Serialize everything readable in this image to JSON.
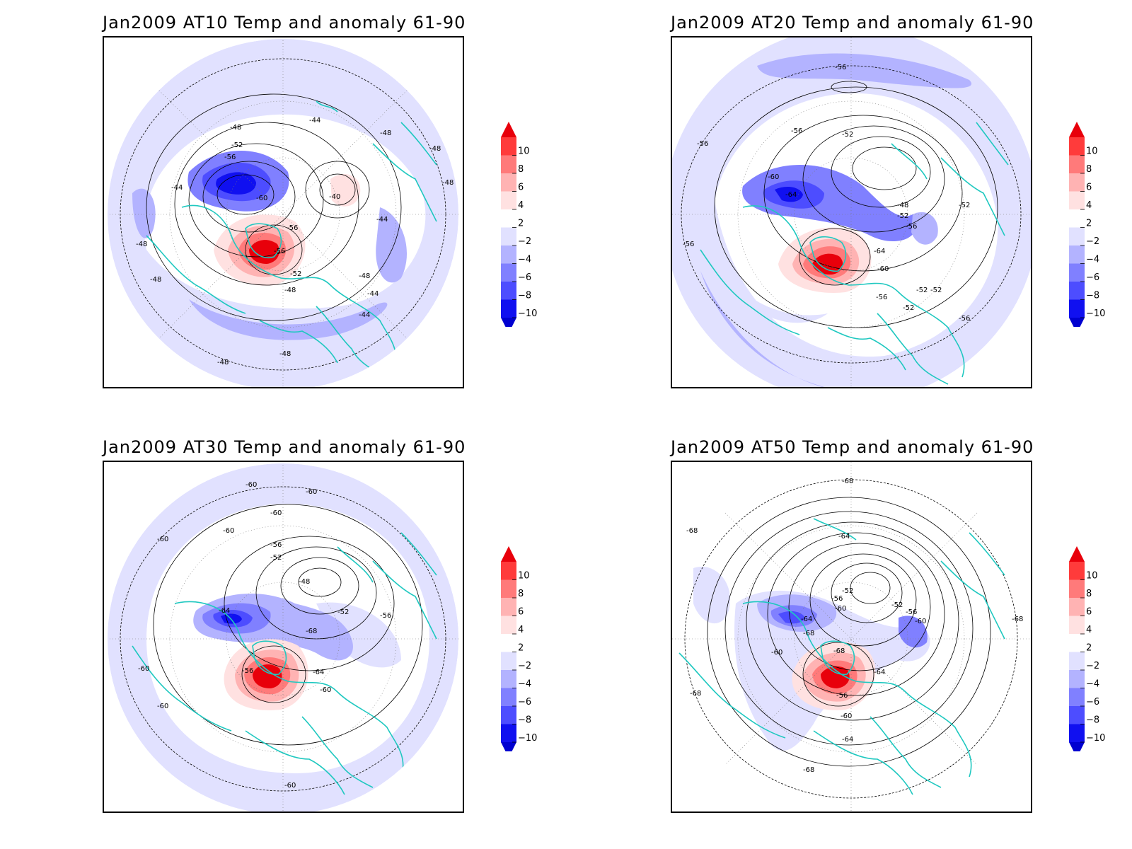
{
  "panels": [
    {
      "title": "Jan2009 AT10 Temp and anomaly 61-90",
      "contour_labels": [
        "-44",
        "-48",
        "-52",
        "-56",
        "-60",
        "-56",
        "-56",
        "-52",
        "-48",
        "-44",
        "-48",
        "-48",
        "-40",
        "-44",
        "-48",
        "-48",
        "-48",
        "-48",
        "-44",
        "-44",
        "-48",
        "-48"
      ]
    },
    {
      "title": "Jan2009 AT20 Temp and anomaly 61-90",
      "contour_labels": [
        "-56",
        "-56",
        "-56",
        "-52",
        "-60",
        "-64",
        "-48",
        "-52",
        "-56",
        "-52",
        "-56",
        "-64",
        "-60",
        "-56",
        "-52",
        "-52",
        "-52",
        "-56"
      ]
    },
    {
      "title": "Jan2009 AT30 Temp and anomaly 61-90",
      "contour_labels": [
        "-60",
        "-60",
        "-60",
        "-60",
        "-60",
        "-56",
        "-52",
        "-48",
        "-52",
        "-56",
        "-64",
        "-68",
        "-56",
        "-64",
        "-60",
        "-60",
        "-60",
        "-60"
      ]
    },
    {
      "title": "Jan2009 AT50 Temp and anomaly 61-90",
      "contour_labels": [
        "-68",
        "-68",
        "-64",
        "-52",
        "-56",
        "-52",
        "-56",
        "-60",
        "-60",
        "-64",
        "-68",
        "-60",
        "-68",
        "-64",
        "-56",
        "-60",
        "-64",
        "-68",
        "-68",
        "-68"
      ]
    }
  ],
  "colorbar": {
    "labels": [
      "10",
      "8",
      "6",
      "4",
      "2",
      "−2",
      "−4",
      "−6",
      "−8",
      "−10"
    ],
    "colors": [
      "#e8000b",
      "#ff3b3b",
      "#ff7a7a",
      "#ffb3b3",
      "#ffe1e1",
      "#ffffff",
      "#e1e1ff",
      "#b3b3ff",
      "#8080ff",
      "#4d4dff",
      "#1010f0",
      "#0000d0"
    ]
  },
  "colors": {
    "coastline": "#1fc8c0",
    "contour": "#000000",
    "frame": "#000000"
  }
}
